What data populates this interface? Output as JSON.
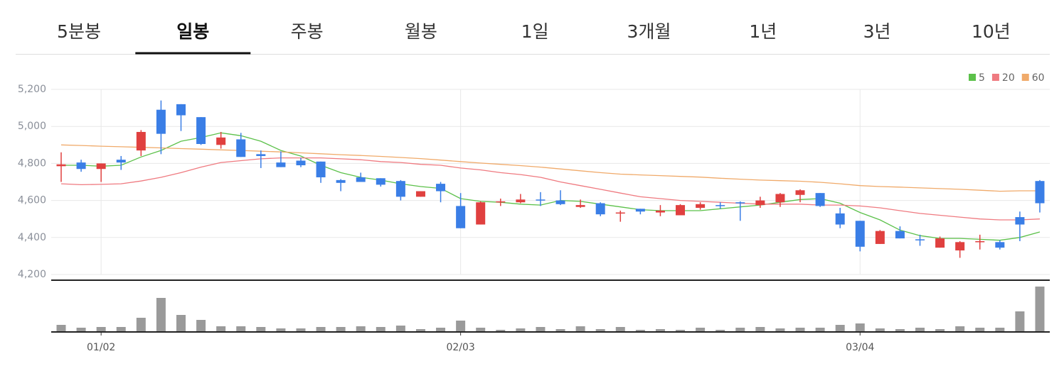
{
  "tabs": {
    "items": [
      "5분봉",
      "일봉",
      "주봉",
      "월봉",
      "1일",
      "3개월",
      "1년",
      "3년",
      "10년"
    ],
    "active": 1
  },
  "chart_data": {
    "type": "candlestick",
    "categories": [
      null,
      null,
      "01/02",
      null,
      null,
      null,
      null,
      null,
      null,
      null,
      null,
      null,
      null,
      null,
      null,
      null,
      null,
      null,
      null,
      null,
      "02/03",
      null,
      null,
      null,
      null,
      null,
      null,
      null,
      null,
      null,
      null,
      null,
      null,
      null,
      null,
      null,
      null,
      null,
      null,
      null,
      "03/04",
      null,
      null,
      null,
      null,
      null,
      null,
      null,
      null,
      null
    ],
    "open": [
      4785,
      4805,
      4770,
      4820,
      4870,
      5090,
      5120,
      5050,
      4900,
      4930,
      4850,
      4805,
      4815,
      4810,
      4710,
      4725,
      4720,
      4705,
      4620,
      4690,
      4570,
      4470,
      4590,
      4590,
      4605,
      4600,
      4565,
      4585,
      4530,
      4555,
      4535,
      4520,
      4560,
      4575,
      4590,
      4575,
      4590,
      4630,
      4640,
      4530,
      4490,
      4365,
      4435,
      4390,
      4345,
      4330,
      4375,
      4375,
      4510,
      4705
    ],
    "high": [
      4860,
      4820,
      4800,
      4840,
      4980,
      5140,
      5120,
      5050,
      4970,
      4965,
      4870,
      4865,
      4830,
      4810,
      4715,
      4750,
      4720,
      4710,
      4650,
      4700,
      4640,
      4595,
      4610,
      4635,
      4645,
      4655,
      4605,
      4590,
      4545,
      4555,
      4575,
      4580,
      4590,
      4590,
      4595,
      4620,
      4640,
      4660,
      4640,
      4560,
      4490,
      4440,
      4460,
      4415,
      4405,
      4380,
      4415,
      4385,
      4540,
      4710
    ],
    "low": [
      4700,
      4755,
      4700,
      4765,
      4840,
      4850,
      4975,
      4900,
      4880,
      4835,
      4775,
      4780,
      4780,
      4695,
      4650,
      4700,
      4675,
      4600,
      4620,
      4590,
      4450,
      4470,
      4570,
      4585,
      4570,
      4575,
      4560,
      4515,
      4485,
      4525,
      4515,
      4520,
      4550,
      4555,
      4490,
      4560,
      4565,
      4590,
      4565,
      4450,
      4325,
      4365,
      4395,
      4355,
      4345,
      4290,
      4335,
      4335,
      4380,
      4535
    ],
    "close": [
      4795,
      4770,
      4800,
      4805,
      4970,
      4960,
      5060,
      4905,
      4940,
      4835,
      4840,
      4780,
      4790,
      4725,
      4695,
      4700,
      4685,
      4620,
      4650,
      4650,
      4450,
      4590,
      4595,
      4605,
      4600,
      4580,
      4575,
      4525,
      4535,
      4540,
      4545,
      4575,
      4580,
      4570,
      4585,
      4600,
      4635,
      4655,
      4570,
      4470,
      4350,
      4435,
      4395,
      4385,
      4395,
      4375,
      4380,
      4345,
      4470,
      4585
    ],
    "up_color": "#e0403f",
    "down_color": "#3a7ee6",
    "series": [
      {
        "name": "5",
        "color": "#5cc14a",
        "values": [
          4790,
          4790,
          4785,
          4790,
          4835,
          4870,
          4920,
          4940,
          4965,
          4950,
          4920,
          4870,
          4840,
          4790,
          4750,
          4725,
          4710,
          4690,
          4675,
          4665,
          4610,
          4595,
          4590,
          4580,
          4575,
          4600,
          4595,
          4580,
          4565,
          4550,
          4545,
          4545,
          4545,
          4555,
          4565,
          4575,
          4590,
          4605,
          4610,
          4585,
          4535,
          4495,
          4440,
          4410,
          4395,
          4395,
          4390,
          4385,
          4400,
          4430
        ]
      },
      {
        "name": "20",
        "color": "#ef7a80",
        "values": [
          4690,
          4685,
          4687,
          4690,
          4705,
          4725,
          4750,
          4780,
          4805,
          4815,
          4825,
          4830,
          4830,
          4830,
          4825,
          4820,
          4810,
          4805,
          4795,
          4790,
          4775,
          4765,
          4750,
          4740,
          4725,
          4700,
          4680,
          4660,
          4640,
          4620,
          4610,
          4600,
          4595,
          4590,
          4585,
          4580,
          4580,
          4580,
          4575,
          4575,
          4570,
          4560,
          4545,
          4530,
          4520,
          4510,
          4500,
          4495,
          4495,
          4500
        ]
      },
      {
        "name": "60",
        "color": "#f0aa6a",
        "values": [
          4900,
          4897,
          4893,
          4890,
          4887,
          4884,
          4880,
          4877,
          4873,
          4870,
          4866,
          4862,
          4857,
          4852,
          4847,
          4843,
          4838,
          4832,
          4826,
          4818,
          4810,
          4802,
          4795,
          4788,
          4780,
          4770,
          4760,
          4750,
          4742,
          4738,
          4734,
          4730,
          4726,
          4720,
          4715,
          4710,
          4707,
          4704,
          4698,
          4690,
          4680,
          4675,
          4672,
          4668,
          4664,
          4660,
          4655,
          4650,
          4652,
          4652
        ]
      }
    ],
    "volume": {
      "color": "#9a9a9a",
      "values": [
        10,
        6,
        7,
        7,
        20,
        48,
        24,
        17,
        8,
        8,
        7,
        5,
        5,
        7,
        7,
        8,
        7,
        9,
        4,
        6,
        16,
        6,
        3,
        5,
        7,
        4,
        8,
        4,
        7,
        3,
        4,
        3,
        6,
        3,
        6,
        7,
        5,
        6,
        6,
        10,
        12,
        5,
        4,
        6,
        4,
        8,
        6,
        6,
        29,
        64
      ]
    },
    "ylim": [
      4200,
      5200
    ],
    "yticks": [
      {
        "value": 4200,
        "label": "4,200"
      },
      {
        "value": 4400,
        "label": "4,400"
      },
      {
        "value": 4600,
        "label": "4,600"
      },
      {
        "value": 4800,
        "label": "4,800"
      },
      {
        "value": 5000,
        "label": "5,000"
      },
      {
        "value": 5200,
        "label": "5,200"
      }
    ],
    "grid": true,
    "legend": "top-right"
  }
}
